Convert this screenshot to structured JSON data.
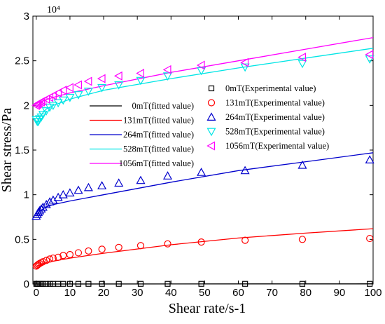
{
  "chart_data": {
    "type": "line",
    "xlabel": "Shear rate/s-1",
    "ylabel": "Shear stress/Pa",
    "y_multiplier_label": "10⁴",
    "xlim": [
      -1,
      100
    ],
    "ylim": [
      0,
      30000
    ],
    "x_ticks": [
      0,
      10,
      20,
      30,
      40,
      50,
      60,
      70,
      80,
      90,
      100
    ],
    "y_ticks": [
      0,
      5000,
      10000,
      15000,
      20000,
      25000,
      30000
    ],
    "y_tick_labels": [
      "0",
      "0.5",
      "1",
      "1.5",
      "2",
      "2.5",
      "3"
    ],
    "grid": false,
    "legend_fitted_position": "center",
    "legend_experimental_position": "right",
    "fitted_series": [
      {
        "name": "0mT(fitted value)",
        "color": "#000000",
        "x": [
          0,
          100
        ],
        "y": [
          0,
          20
        ]
      },
      {
        "name": "131mT(fitted value)",
        "color": "#ff0000",
        "x": [
          0,
          0.5,
          1,
          2,
          3,
          5,
          10,
          20,
          40,
          60,
          80,
          100
        ],
        "y": [
          1900,
          2050,
          2150,
          2300,
          2400,
          2550,
          2900,
          3450,
          4400,
          5150,
          5700,
          6200
        ]
      },
      {
        "name": "264mT(fitted value)",
        "color": "#0000cc",
        "x": [
          0,
          0.5,
          1,
          2,
          3,
          5,
          10,
          20,
          40,
          60,
          80,
          100
        ],
        "y": [
          7600,
          7900,
          8100,
          8400,
          8650,
          8900,
          9300,
          10000,
          11400,
          12700,
          13700,
          14700
        ]
      },
      {
        "name": "528mT(fitted value)",
        "color": "#00e5e5",
        "x": [
          0,
          0.3,
          0.6,
          1,
          2,
          3,
          5,
          8,
          10,
          20,
          40,
          60,
          80,
          100
        ],
        "y": [
          18300,
          18100,
          18200,
          18600,
          19200,
          19600,
          20000,
          20400,
          20700,
          21700,
          23000,
          24200,
          25300,
          26400
        ]
      },
      {
        "name": "1056mT(fitted value)",
        "color": "#ff00ff",
        "x": [
          0,
          0.3,
          0.6,
          1,
          2,
          3,
          5,
          8,
          10,
          20,
          40,
          60,
          80,
          100
        ],
        "y": [
          19800,
          19900,
          20050,
          20250,
          20500,
          20650,
          20900,
          21200,
          21400,
          22200,
          23700,
          25000,
          26300,
          27600
        ]
      }
    ],
    "experimental_series": [
      {
        "name": "0mT(Experimental value)",
        "color": "#000000",
        "marker": "square",
        "x": [
          0,
          0.3,
          0.6,
          1,
          1.5,
          2,
          3,
          4,
          5,
          6.5,
          8,
          10,
          12.5,
          15.5,
          19.5,
          24.5,
          31,
          39,
          49,
          62,
          79,
          99
        ],
        "y": [
          20,
          20,
          20,
          20,
          20,
          20,
          20,
          20,
          20,
          20,
          20,
          20,
          20,
          20,
          20,
          20,
          20,
          20,
          20,
          20,
          20,
          20
        ]
      },
      {
        "name": "131mT(Experimental value)",
        "color": "#ff0000",
        "marker": "circle",
        "x": [
          0,
          0.3,
          0.6,
          1,
          1.5,
          2,
          3,
          4,
          5,
          6.5,
          8,
          10,
          12.5,
          15.5,
          19.5,
          24.5,
          31,
          39,
          49,
          62,
          79,
          99
        ],
        "y": [
          2000,
          2100,
          2200,
          2300,
          2400,
          2500,
          2650,
          2800,
          2900,
          3000,
          3200,
          3300,
          3500,
          3700,
          3900,
          4100,
          4300,
          4500,
          4700,
          4900,
          5000,
          5100
        ]
      },
      {
        "name": "264mT(Experimental value)",
        "color": "#0000cc",
        "marker": "triangle",
        "x": [
          0,
          0.3,
          0.6,
          1,
          1.5,
          2,
          3,
          4,
          5,
          6.5,
          8,
          10,
          12.5,
          15.5,
          19.5,
          24.5,
          31,
          39,
          49,
          62,
          79,
          99
        ],
        "y": [
          7600,
          7800,
          8000,
          8200,
          8400,
          8600,
          8900,
          9200,
          9400,
          9700,
          10000,
          10200,
          10500,
          10800,
          11000,
          11300,
          11600,
          12100,
          12500,
          12700,
          13300,
          13900
        ]
      },
      {
        "name": "528mT(Experimental value)",
        "color": "#00e5e5",
        "marker": "triangle-down",
        "x": [
          0,
          0.3,
          0.6,
          1,
          1.5,
          2,
          3,
          4,
          5,
          6.5,
          8,
          10,
          12.5,
          15.5,
          19.5,
          24.5,
          31,
          39,
          49,
          62,
          79,
          99
        ],
        "y": [
          18400,
          18200,
          18200,
          18500,
          18700,
          19000,
          19400,
          19800,
          20000,
          20300,
          20600,
          20900,
          21200,
          21600,
          22000,
          22300,
          22800,
          23300,
          23900,
          24300,
          24700,
          25200
        ]
      },
      {
        "name": "1056mT(Experimental value)",
        "color": "#ff00ff",
        "marker": "triangle-left",
        "x": [
          0,
          0.3,
          0.6,
          1,
          1.5,
          2,
          3,
          4,
          5,
          6.5,
          8,
          10,
          12.5,
          15.5,
          19.5,
          24.5,
          31,
          39,
          49,
          62,
          79,
          99
        ],
        "y": [
          20000,
          20100,
          20200,
          20300,
          20400,
          20500,
          20700,
          20900,
          21100,
          21400,
          21700,
          22000,
          22300,
          22700,
          23000,
          23300,
          23600,
          24000,
          24500,
          24800,
          25400,
          25700
        ]
      }
    ]
  }
}
